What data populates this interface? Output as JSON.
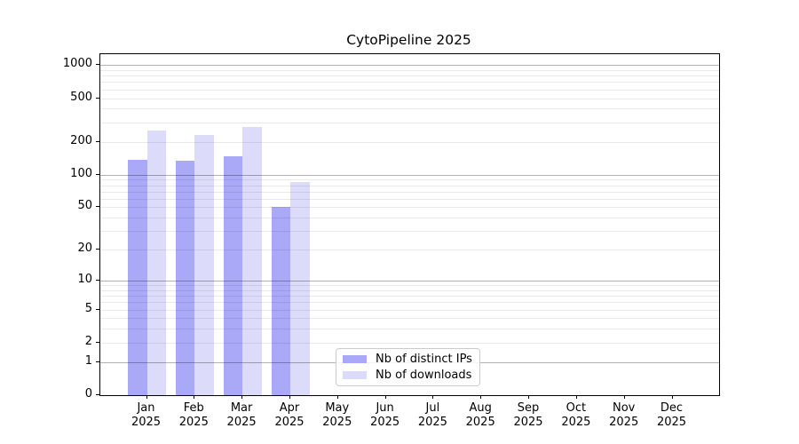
{
  "title": "CytoPipeline 2025",
  "chart_data": {
    "type": "bar",
    "title": "CytoPipeline 2025",
    "x_categories": [
      "Jan",
      "Feb",
      "Mar",
      "Apr",
      "May",
      "Jun",
      "Jul",
      "Aug",
      "Sep",
      "Oct",
      "Nov",
      "Dec"
    ],
    "x_year": "2025",
    "series": [
      {
        "name": "Nb of distinct IPs",
        "color": "#a9a9f8",
        "values": [
          136,
          133,
          146,
          50,
          null,
          null,
          null,
          null,
          null,
          null,
          null,
          null
        ]
      },
      {
        "name": "Nb of downloads",
        "color": "#dcdcfa",
        "values": [
          252,
          232,
          272,
          85,
          null,
          null,
          null,
          null,
          null,
          null,
          null,
          null
        ]
      }
    ],
    "yscale": "log1p",
    "ylim": [
      0,
      1255
    ],
    "yticks": [
      0,
      1,
      2,
      5,
      10,
      20,
      50,
      100,
      200,
      500,
      1000
    ],
    "grid": {
      "major_values": [
        1,
        10,
        100,
        1000
      ],
      "minor_multiples": [
        2,
        3,
        4,
        5,
        6,
        7,
        8,
        9
      ],
      "decades": [
        1,
        10,
        100
      ]
    },
    "legend_position": "lower center-right",
    "colors": {
      "major_grid": "rgba(0,0,0,0.30)",
      "minor_grid": "rgba(0,0,0,0.085)",
      "spine": "#000000",
      "background": "#ffffff"
    }
  }
}
